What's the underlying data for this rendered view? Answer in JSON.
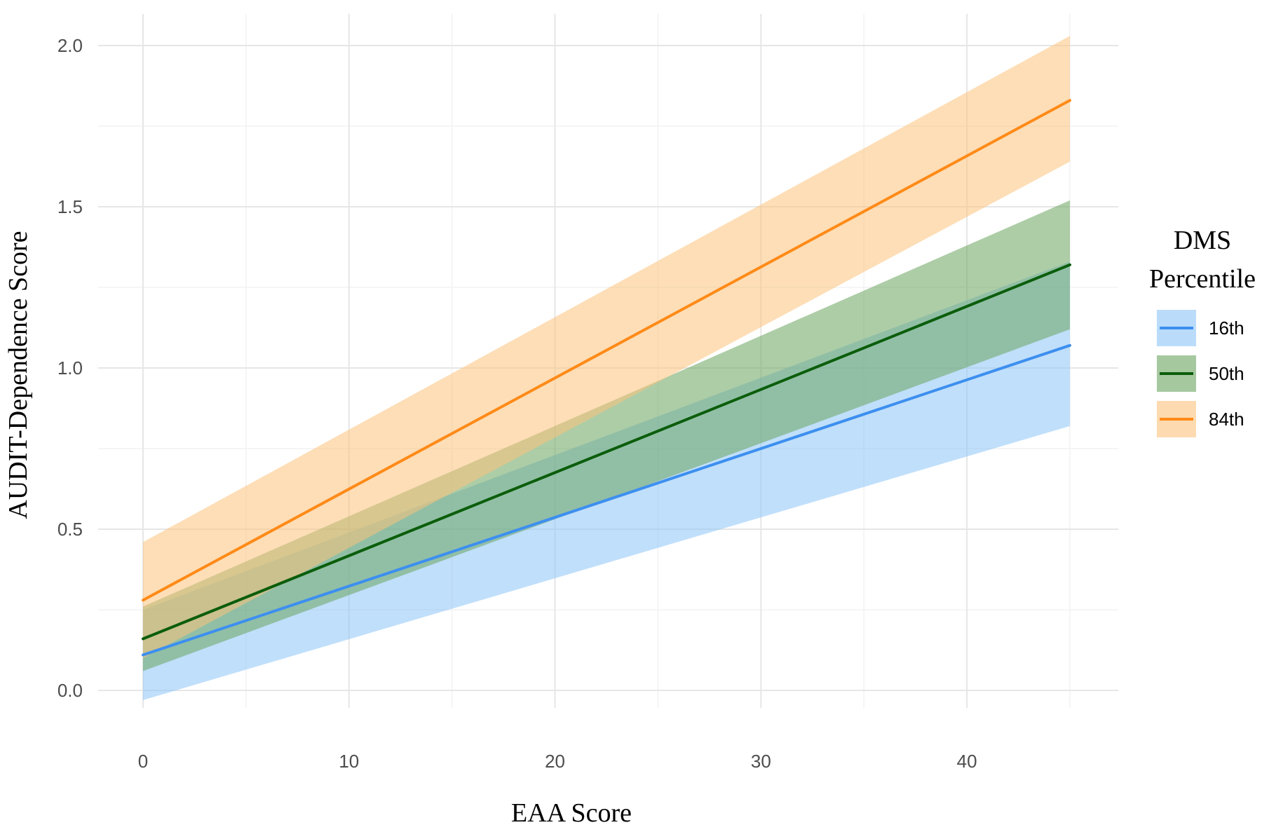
{
  "chart_data": {
    "type": "line",
    "title": "",
    "xlabel": "EAA Score",
    "ylabel": "AUDIT-Dependence Score",
    "xlim": [
      0,
      45
    ],
    "ylim": [
      0,
      2.0
    ],
    "x_ticks": [
      0,
      10,
      20,
      30,
      40
    ],
    "x_tick_labels": [
      "0",
      "10",
      "20",
      "30",
      "40"
    ],
    "y_ticks": [
      0.0,
      0.5,
      1.0,
      1.5,
      2.0
    ],
    "y_tick_labels": [
      "0.0",
      "0.5",
      "1.0",
      "1.5",
      "2.0"
    ],
    "grid": true,
    "legend": {
      "title_lines": [
        "DMS",
        "Percentile"
      ],
      "placement": "right"
    },
    "series": [
      {
        "name": "16th",
        "color": "#3d8fef",
        "band_color": "#8cc4f7",
        "x": [
          0,
          45
        ],
        "y": [
          0.11,
          1.07
        ],
        "lower": [
          -0.03,
          0.82
        ],
        "upper": [
          0.25,
          1.33
        ]
      },
      {
        "name": "50th",
        "color": "#0b5d0b",
        "band_color": "#6aa45f",
        "x": [
          0,
          45
        ],
        "y": [
          0.16,
          1.32
        ],
        "lower": [
          0.06,
          1.12
        ],
        "upper": [
          0.26,
          1.52
        ]
      },
      {
        "name": "84th",
        "color": "#ff8a17",
        "band_color": "#fbc27c",
        "x": [
          0,
          45
        ],
        "y": [
          0.28,
          1.83
        ],
        "lower": [
          0.1,
          1.64
        ],
        "upper": [
          0.46,
          2.03
        ]
      }
    ]
  }
}
